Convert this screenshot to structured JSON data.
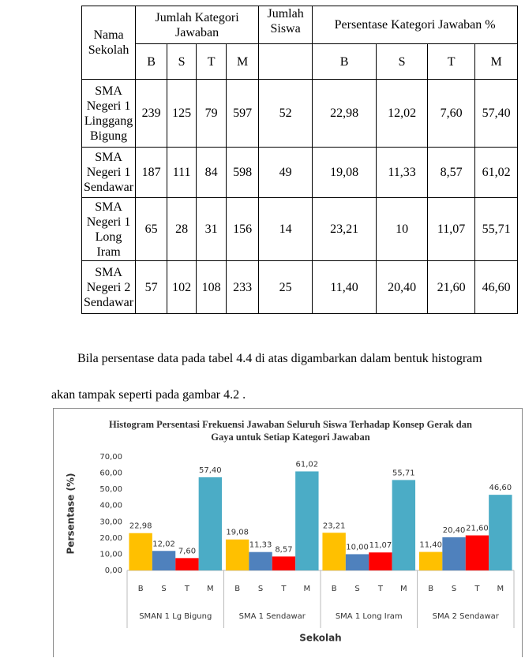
{
  "table": {
    "header": [
      "Nama Sekolah",
      "Jumlah Kategori Jawaban",
      "Jumlah Siswa",
      "Persentase Kategori Jawaban %"
    ],
    "subheader": [
      "B",
      "S",
      "T",
      "M",
      "B",
      "S",
      "T",
      "M"
    ],
    "rows": [
      [
        "SMA Negeri 1 Linggang Bigung",
        "239",
        "125",
        "79",
        "597",
        "52",
        "22,98",
        "12,02",
        "7,60",
        "57,40"
      ],
      [
        "SMA Negeri 1 Sendawar",
        "187",
        "111",
        "84",
        "598",
        "49",
        "19,08",
        "11,33",
        "8,57",
        "61,02"
      ],
      [
        "SMA Negeri 1 Long Iram",
        "65",
        "28",
        "31",
        "156",
        "14",
        "23,21",
        "10",
        "11,07",
        "55,71"
      ],
      [
        "SMA Negeri 2 Sendawar",
        "57",
        "102",
        "108",
        "233",
        "25",
        "11,40",
        "20,40",
        "21,60",
        "46,60"
      ]
    ]
  },
  "paragraph": "Bila persentase data pada tabel 4.4 di atas digambarkan dalam bentuk histogram akan tampak seperti pada gambar 4.2 .",
  "chart_data": {
    "type": "bar",
    "title": "Histogram Persentasi Frekuensi Jawaban Seluruh Siswa Terhadap Konsep Gerak dan Gaya untuk Setiap Kategori Jawaban",
    "x_label": "Sekolah",
    "y_label": "Persentase (%)",
    "categories": [
      "SMAN 1 Lg Bigung",
      "SMA 1 Sendawar",
      "SMA 1 Long Iram",
      "SMA 2 Sendawar"
    ],
    "series": [
      {
        "name": "B",
        "color": "#FFC000",
        "values": [
          22.98,
          19.08,
          23.21,
          11.4
        ],
        "value_labels": [
          "22,98",
          "19,08",
          "23,21",
          "11,40"
        ]
      },
      {
        "name": "S",
        "color": "#4F81BD",
        "values": [
          12.02,
          11.33,
          10.0,
          20.4
        ],
        "value_labels": [
          "12,02",
          "11,33",
          "10,00",
          "20,40"
        ]
      },
      {
        "name": "T",
        "color": "#FF0000",
        "values": [
          7.6,
          8.57,
          11.07,
          21.6
        ],
        "value_labels": [
          "7,60",
          "8,57",
          "11,07",
          "21,60"
        ]
      },
      {
        "name": "M",
        "color": "#4BACC6",
        "values": [
          57.4,
          61.02,
          55.71,
          46.6
        ],
        "value_labels": [
          "57,40",
          "61,02",
          "55,71",
          "46,60"
        ]
      }
    ],
    "ylim": [
      0,
      70
    ],
    "yticks": [
      {
        "value": 0,
        "label": "0,00"
      },
      {
        "value": 10,
        "label": "10,00"
      },
      {
        "value": 20,
        "label": "20,00"
      },
      {
        "value": 30,
        "label": "30,00"
      },
      {
        "value": 40,
        "label": "40,00"
      },
      {
        "value": 50,
        "label": "50,00"
      },
      {
        "value": 60,
        "label": "60,00"
      },
      {
        "value": 70,
        "label": "70,00"
      }
    ],
    "grid": false
  }
}
